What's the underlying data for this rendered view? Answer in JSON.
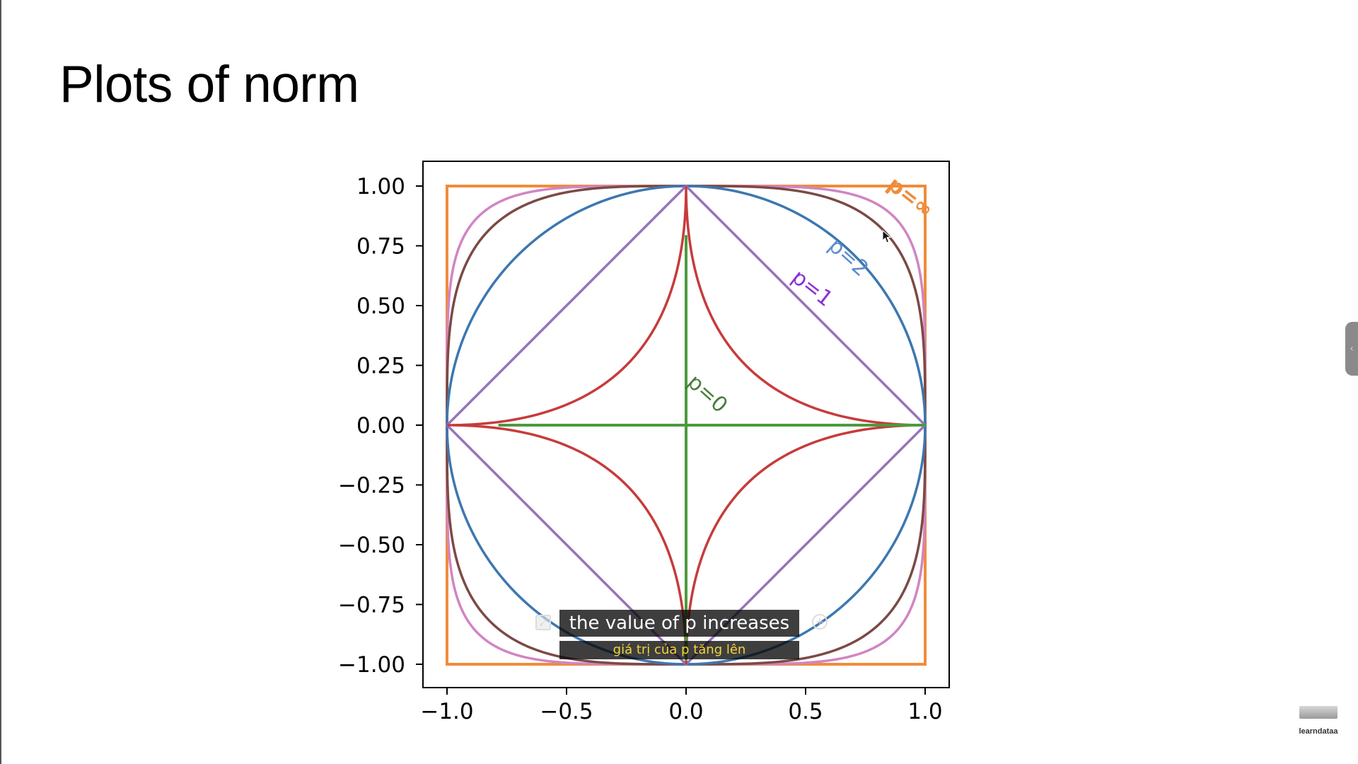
{
  "slide": {
    "title": "Plots of norm"
  },
  "chart_data": {
    "type": "line",
    "title": "",
    "xlabel": "",
    "ylabel": "",
    "xlim": [
      -1.1,
      1.1
    ],
    "ylim": [
      -1.1,
      1.1
    ],
    "xticks": [
      "−1.0",
      "−0.5",
      "0.0",
      "0.5",
      "1.0"
    ],
    "xtick_values": [
      -1.0,
      -0.5,
      0.0,
      0.5,
      1.0
    ],
    "yticks": [
      "1.00",
      "0.75",
      "0.50",
      "0.25",
      "0.00",
      "−0.25",
      "−0.50",
      "−0.75",
      "−1.00"
    ],
    "ytick_values": [
      1.0,
      0.75,
      0.5,
      0.25,
      0.0,
      -0.25,
      -0.5,
      -0.75,
      -1.0
    ],
    "grid": false,
    "series": [
      {
        "name": "p=∞",
        "p": "inf",
        "color": "#f08c3a",
        "label_x": 0.92,
        "label_y": 0.93
      },
      {
        "name": "",
        "p": 5,
        "color": "#d184c4"
      },
      {
        "name": "",
        "p": 3.5,
        "color": "#7b4a45"
      },
      {
        "name": "p=2",
        "p": 2,
        "color": "#3c77b0",
        "label_x": 0.66,
        "label_y": 0.68
      },
      {
        "name": "p=1",
        "p": 1,
        "color": "#9673ba",
        "label_x": 0.51,
        "label_y": 0.55
      },
      {
        "name": "",
        "p": 0.5,
        "color": "#c73b3b"
      },
      {
        "name": "p=0",
        "p": 0,
        "color": "#4c9a3f",
        "label_x": 0.07,
        "label_y": 0.11
      }
    ],
    "label_colors": {
      "p=∞": "#f08c3a",
      "p=2": "#5a8ecb",
      "p=1": "#8a2ed6",
      "p=0": "#4a7d3a"
    }
  },
  "captions": {
    "line1": "the value of p increases",
    "line2": "giá trị của p tăng lên"
  },
  "watermark": {
    "text": "learndataa"
  },
  "icons": {
    "expand": "expand-icon",
    "add": "add-circle-icon",
    "side": "chevron-left-icon",
    "cursor": "mouse-pointer-icon"
  }
}
